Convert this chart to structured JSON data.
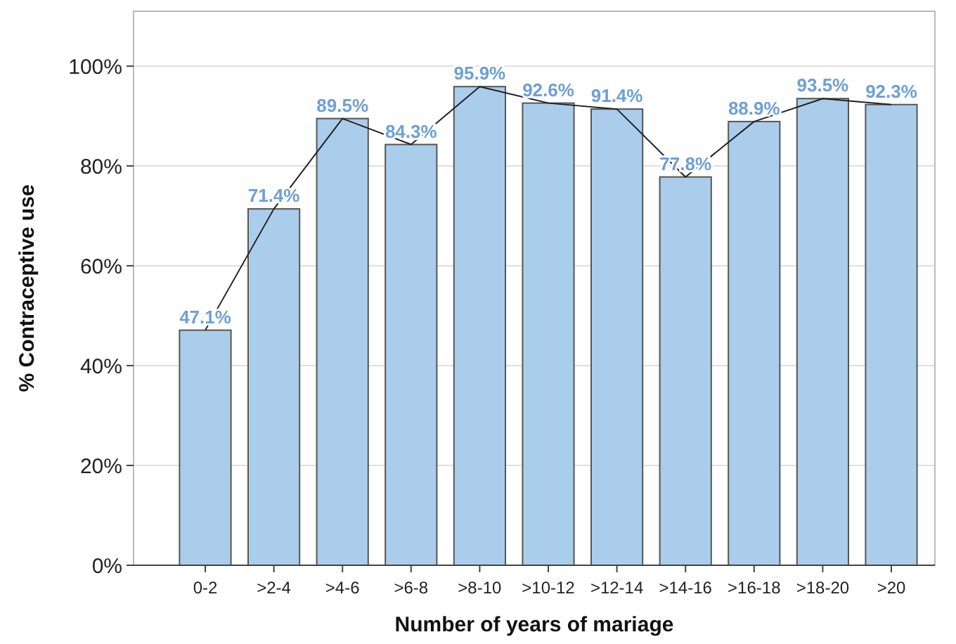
{
  "chart_data": {
    "type": "bar",
    "xlabel": "Number of years of mariage",
    "ylabel": "% Contraceptive use",
    "categories": [
      "0-2",
      ">2-4",
      ">4-6",
      ">6-8",
      ">8-10",
      ">10-12",
      ">12-14",
      ">14-16",
      ">16-18",
      ">18-20",
      ">20"
    ],
    "series": [
      {
        "color": "#abcdec",
        "values": [
          47.1,
          71.4,
          89.5,
          84.3,
          95.9,
          92.6,
          91.4,
          77.8,
          88.9,
          93.5,
          92.3
        ],
        "value_labels": [
          "47.1%",
          "71.4%",
          "89.5%",
          "84.3%",
          "95.9%",
          "92.6%",
          "91.4%",
          "77.8%",
          "88.9%",
          "93.5%",
          "92.3%"
        ]
      },
      {
        "type": "line",
        "color": "#222222",
        "values": [
          47.1,
          71.4,
          89.5,
          84.3,
          95.9,
          92.6,
          91.4,
          77.8,
          88.9,
          93.5,
          92.3
        ]
      }
    ],
    "ylim": [
      0,
      111
    ],
    "yticks": [
      {
        "value": 0,
        "label": "0%"
      },
      {
        "value": 20,
        "label": "20%"
      },
      {
        "value": 40,
        "label": "40%"
      },
      {
        "value": 60,
        "label": "60%"
      },
      {
        "value": 80,
        "label": "80%"
      },
      {
        "value": 100,
        "label": "100%"
      }
    ],
    "grid": "y",
    "marker": "none",
    "line_style": "solid"
  }
}
